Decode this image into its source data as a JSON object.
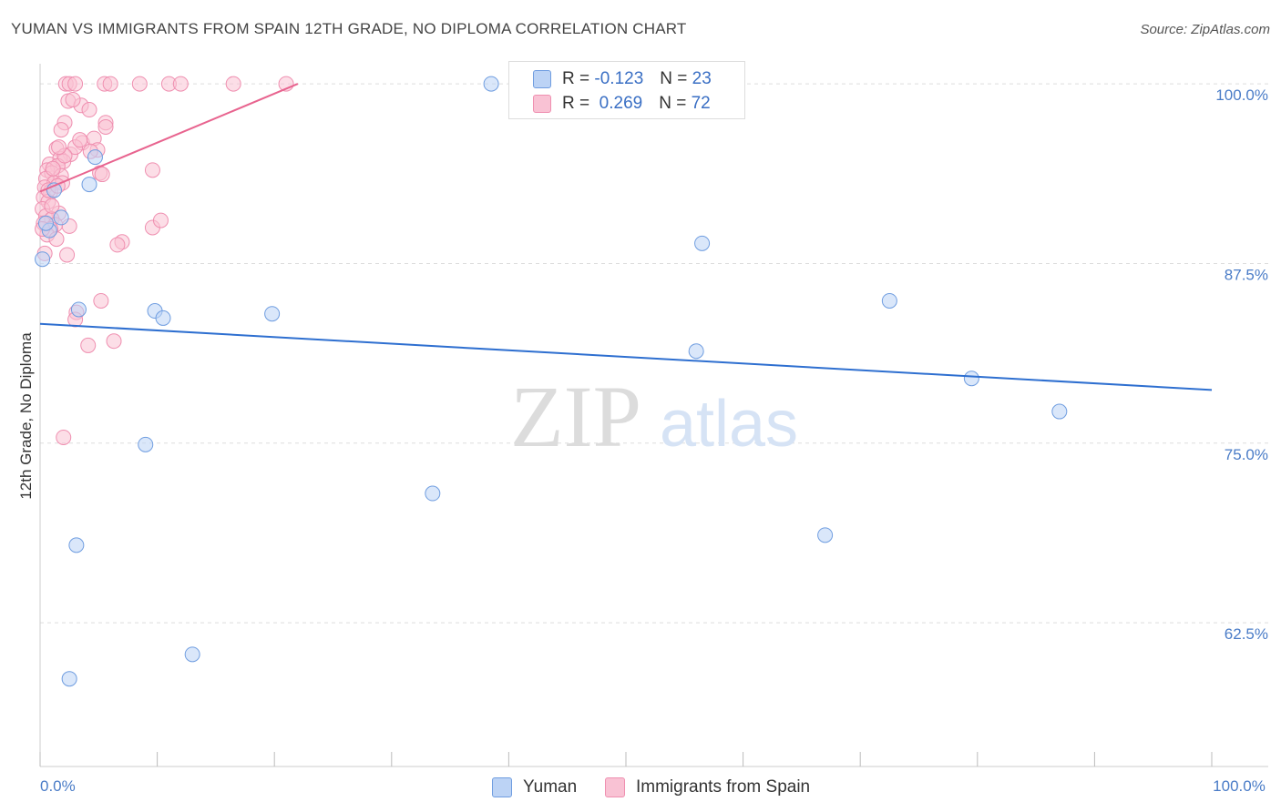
{
  "title": "YUMAN VS IMMIGRANTS FROM SPAIN 12TH GRADE, NO DIPLOMA CORRELATION CHART",
  "source": "Source: ZipAtlas.com",
  "watermark": {
    "zip": "ZIP",
    "atlas": "atlas"
  },
  "legend": {
    "rows": [
      {
        "r_label": "R =",
        "r_value": "-0.123",
        "n_label": "N =",
        "n_value": "23"
      },
      {
        "r_label": "R =",
        "r_value": "0.269",
        "n_label": "N =",
        "n_value": "72"
      }
    ]
  },
  "bottom_legend": [
    "Yuman",
    "Immigrants from Spain"
  ],
  "colors": {
    "blue_fill": "#bcd3f5",
    "blue_stroke": "#6f9de0",
    "blue_line": "#2e6fd0",
    "pink_fill": "#f9c2d4",
    "pink_stroke": "#ef8fb0",
    "pink_line": "#e8648f",
    "grid": "#dddddd",
    "tick_label": "#4a7cc7"
  },
  "chart_data": {
    "type": "scatter",
    "title": "YUMAN VS IMMIGRANTS FROM SPAIN 12TH GRADE, NO DIPLOMA CORRELATION CHART",
    "xlabel": "",
    "ylabel": "12th Grade, No Diploma",
    "xlim": [
      0,
      100
    ],
    "ylim": [
      52.5,
      101.4
    ],
    "x_tick_labels": [
      {
        "value": 0,
        "label": "0.0%"
      },
      {
        "value": 100,
        "label": "100.0%"
      }
    ],
    "y_ticks": [
      {
        "value": 100,
        "label": "100.0%"
      },
      {
        "value": 87.5,
        "label": "87.5%"
      },
      {
        "value": 75,
        "label": "75.0%"
      },
      {
        "value": 62.5,
        "label": "62.5%"
      }
    ],
    "series": [
      {
        "name": "Yuman",
        "color": "blue",
        "trend": {
          "x": [
            0,
            100
          ],
          "y": [
            83.3,
            78.7
          ]
        },
        "points": [
          [
            0.2,
            87.8
          ],
          [
            0.8,
            89.8
          ],
          [
            1.2,
            92.6
          ],
          [
            1.8,
            90.7
          ],
          [
            2.5,
            58.6
          ],
          [
            3.1,
            67.9
          ],
          [
            3.3,
            84.3
          ],
          [
            4.2,
            93.0
          ],
          [
            4.7,
            94.9
          ],
          [
            9.0,
            74.9
          ],
          [
            9.8,
            84.2
          ],
          [
            10.5,
            83.7
          ],
          [
            13.0,
            60.3
          ],
          [
            19.8,
            84.0
          ],
          [
            33.5,
            71.5
          ],
          [
            38.5,
            100.0
          ],
          [
            56.0,
            81.4
          ],
          [
            56.5,
            88.9
          ],
          [
            67.0,
            68.6
          ],
          [
            72.5,
            84.9
          ],
          [
            79.5,
            79.5
          ],
          [
            87.0,
            77.2
          ],
          [
            0.5,
            90.3
          ]
        ]
      },
      {
        "name": "Immigrants from Spain",
        "color": "pink",
        "trend": {
          "x": [
            0,
            22
          ],
          "y": [
            92.5,
            100.0
          ]
        },
        "points": [
          [
            2.2,
            100.0
          ],
          [
            2.5,
            100.0
          ],
          [
            3.0,
            100.0
          ],
          [
            5.5,
            100.0
          ],
          [
            6.0,
            100.0
          ],
          [
            8.5,
            100.0
          ],
          [
            11.0,
            100.0
          ],
          [
            12.0,
            100.0
          ],
          [
            16.5,
            100.0
          ],
          [
            21.0,
            100.0
          ],
          [
            2.4,
            98.8
          ],
          [
            3.5,
            98.5
          ],
          [
            4.2,
            98.2
          ],
          [
            5.6,
            97.3
          ],
          [
            2.1,
            97.3
          ],
          [
            1.8,
            96.8
          ],
          [
            3.6,
            95.9
          ],
          [
            4.6,
            96.2
          ],
          [
            1.4,
            95.5
          ],
          [
            4.9,
            95.4
          ],
          [
            2.6,
            95.1
          ],
          [
            3.0,
            95.6
          ],
          [
            1.7,
            94.8
          ],
          [
            2.0,
            94.6
          ],
          [
            0.8,
            94.4
          ],
          [
            1.5,
            94.3
          ],
          [
            0.6,
            94.0
          ],
          [
            1.0,
            93.8
          ],
          [
            1.8,
            93.6
          ],
          [
            0.5,
            93.4
          ],
          [
            1.2,
            93.1
          ],
          [
            5.1,
            93.8
          ],
          [
            9.6,
            94.0
          ],
          [
            0.4,
            92.8
          ],
          [
            0.9,
            92.5
          ],
          [
            0.3,
            92.1
          ],
          [
            0.7,
            91.8
          ],
          [
            0.2,
            91.3
          ],
          [
            1.6,
            91.0
          ],
          [
            0.5,
            90.8
          ],
          [
            1.0,
            90.6
          ],
          [
            0.3,
            90.3
          ],
          [
            1.3,
            90.2
          ],
          [
            0.9,
            89.9
          ],
          [
            2.5,
            90.1
          ],
          [
            9.6,
            90.0
          ],
          [
            10.3,
            90.5
          ],
          [
            0.6,
            89.5
          ],
          [
            1.4,
            89.2
          ],
          [
            7.0,
            89.0
          ],
          [
            6.6,
            88.8
          ],
          [
            0.4,
            88.2
          ],
          [
            2.3,
            88.1
          ],
          [
            5.2,
            84.9
          ],
          [
            3.1,
            84.1
          ],
          [
            3.0,
            83.6
          ],
          [
            6.3,
            82.1
          ],
          [
            4.1,
            81.8
          ],
          [
            2.0,
            75.4
          ],
          [
            5.6,
            97.0
          ],
          [
            3.4,
            96.1
          ],
          [
            2.1,
            95.0
          ],
          [
            1.1,
            94.1
          ],
          [
            1.9,
            93.1
          ],
          [
            5.3,
            93.7
          ],
          [
            0.7,
            92.6
          ],
          [
            1.5,
            92.9
          ],
          [
            2.8,
            98.9
          ],
          [
            4.3,
            95.3
          ],
          [
            0.2,
            89.9
          ],
          [
            1.0,
            91.5
          ],
          [
            1.6,
            95.6
          ]
        ]
      }
    ]
  }
}
